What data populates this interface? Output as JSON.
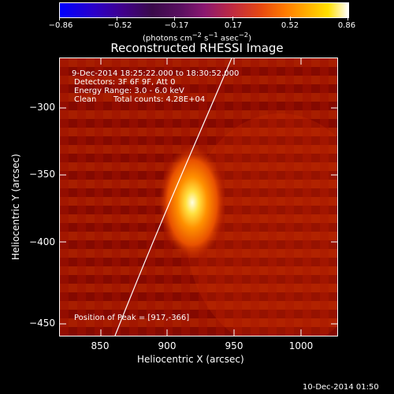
{
  "colorbar": {
    "tick_labels": [
      "−0.86",
      "−0.52",
      "−0.17",
      "0.17",
      "0.52",
      "0.86"
    ],
    "unit_html": "(photons cm<sup>−2</sup> s<sup>−1</sup> asec<sup>−2</sup>)"
  },
  "title": "Reconstructed RHESSI Image",
  "annotations": {
    "time_range": "9-Dec-2014 18:25:22.000 to 18:30:52.000",
    "detectors": "Detectors: 3F 6F 9F, Att 0",
    "energy": "Energy Range: 3.0 - 6.0 keV",
    "clean": "Clean",
    "total_counts": "Total counts: 4.28E+04",
    "peak": "Position of Peak = [917,-366]"
  },
  "axes": {
    "xlabel": "Heliocentric X (arcsec)",
    "ylabel": "Heliocentric Y (arcsec)",
    "xticks": [
      "850",
      "900",
      "950",
      "1000"
    ],
    "yticks": [
      "−300",
      "−350",
      "−400",
      "−450"
    ]
  },
  "footer": {
    "timestamp": "10-Dec-2014 01:50"
  }
}
